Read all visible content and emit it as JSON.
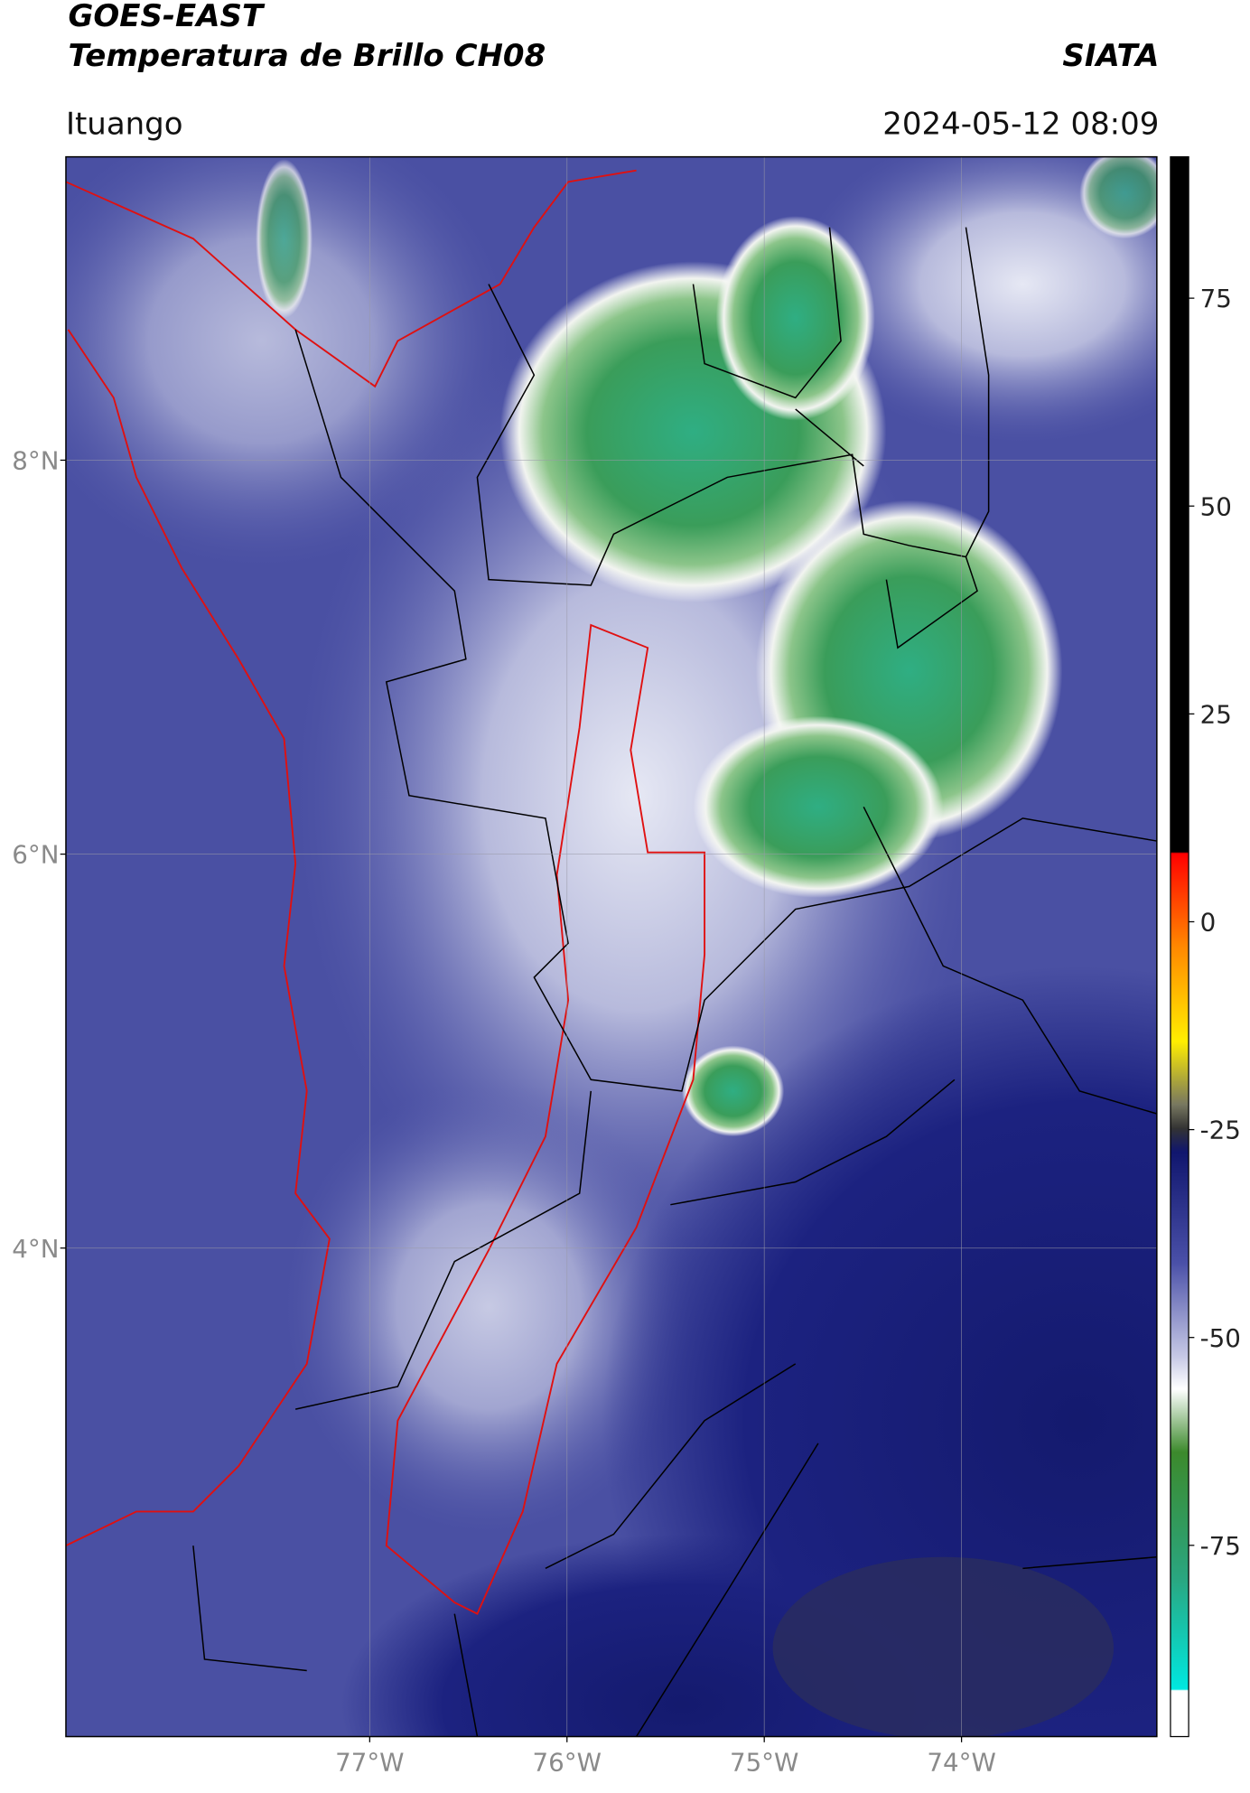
{
  "header": {
    "title": "GOES-EAST",
    "subtitle": "Temperatura de Brillo CH08",
    "brand": "SIATA",
    "location": "Ituango",
    "datetime": "2024-05-12 08:09"
  },
  "map": {
    "lonlim": [
      -78.54,
      -73.01
    ],
    "latlim": [
      1.52,
      9.54
    ],
    "lon_ticks": [
      {
        "value": -77,
        "label": "77°W"
      },
      {
        "value": -76,
        "label": "76°W"
      },
      {
        "value": -75,
        "label": "75°W"
      },
      {
        "value": -74,
        "label": "74°W"
      }
    ],
    "lat_ticks": [
      {
        "value": 8,
        "label": "8°N"
      },
      {
        "value": 6,
        "label": "6°N"
      },
      {
        "value": 4,
        "label": "4°N"
      }
    ],
    "grid": true
  },
  "colorbar": {
    "lim": [
      -98,
      92
    ],
    "ticks": [
      75,
      50,
      25,
      0,
      -25,
      -50,
      -75
    ]
  }
}
